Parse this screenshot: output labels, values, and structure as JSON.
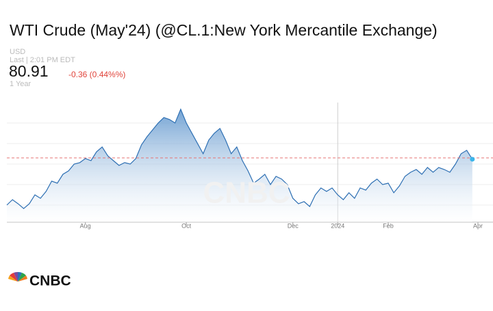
{
  "header": {
    "title": "WTI Crude (May'24) (@CL.1:New York Mercantile Exchange)",
    "currency": "USD",
    "last_time": "Last | 2:01 PM EDT",
    "price": "80.91",
    "change": "-0.36 (0.44%%)",
    "range": "1 Year"
  },
  "chart_data": {
    "type": "area",
    "categories": [
      null,
      null,
      null,
      null,
      null,
      null,
      null,
      null,
      null,
      null,
      null,
      null,
      null,
      null,
      "Aug",
      null,
      null,
      null,
      null,
      null,
      null,
      null,
      null,
      null,
      null,
      null,
      null,
      null,
      null,
      null,
      null,
      null,
      "Oct",
      null,
      null,
      null,
      null,
      null,
      null,
      null,
      null,
      null,
      null,
      null,
      null,
      null,
      null,
      null,
      null,
      null,
      null,
      "Dec",
      null,
      null,
      null,
      null,
      null,
      null,
      null,
      "2024",
      null,
      null,
      null,
      null,
      null,
      null,
      null,
      null,
      "Feb",
      null,
      null,
      null,
      null,
      null,
      null,
      null,
      null,
      null,
      null,
      null,
      null,
      null,
      null,
      null,
      "Apr"
    ],
    "values": [
      68.95,
      70.37,
      69.3,
      68.05,
      69.3,
      71.62,
      70.73,
      72.52,
      75.2,
      74.66,
      76.98,
      77.87,
      79.66,
      80.02,
      81.09,
      80.55,
      82.87,
      84.12,
      81.8,
      80.55,
      79.3,
      80.02,
      79.66,
      81.09,
      84.66,
      86.8,
      88.59,
      90.37,
      91.8,
      91.27,
      90.37,
      93.95,
      90.37,
      87.7,
      85.02,
      82.34,
      85.91,
      87.7,
      88.95,
      85.91,
      82.34,
      84.12,
      80.55,
      77.87,
      74.66,
      75.73,
      76.98,
      74.3,
      76.45,
      75.73,
      74.3,
      70.73,
      69.3,
      69.84,
      68.59,
      71.62,
      73.41,
      72.52,
      73.41,
      71.62,
      70.37,
      72.16,
      70.73,
      73.41,
      72.87,
      74.66,
      75.73,
      74.3,
      74.66,
      72.16,
      73.95,
      76.45,
      77.52,
      78.23,
      76.98,
      78.77,
      77.52,
      78.77,
      78.23,
      77.52,
      79.66,
      82.34,
      83.23,
      80.91,
      null
    ],
    "color": "#2d6fb3",
    "previous_close": 81.27,
    "ylim": [
      64.5,
      95.7
    ]
  },
  "watermark": "CNBC",
  "logo": "CNBC"
}
